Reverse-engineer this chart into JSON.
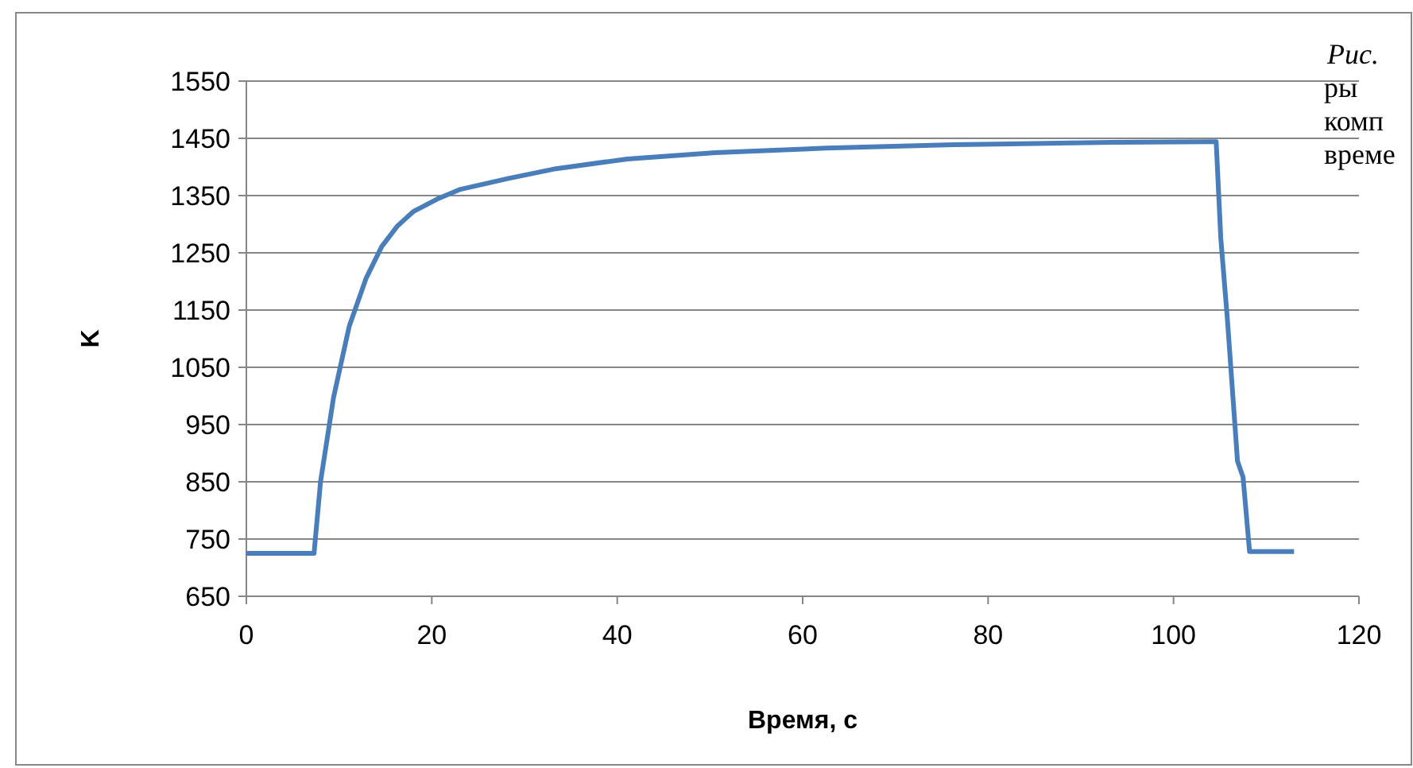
{
  "chart_data": {
    "type": "line",
    "xlabel": "Время, с",
    "ylabel": "K",
    "annotations": [
      "Рис.",
      "ры",
      "комп",
      "време"
    ],
    "x": [
      0,
      7.3,
      8,
      9.4,
      11.1,
      12.9,
      14.6,
      16.3,
      18,
      20.6,
      23.1,
      28.3,
      33.4,
      41.1,
      50.6,
      62.6,
      76.3,
      93.4,
      104.6,
      105.1,
      105.8,
      106.9,
      107.5,
      108.2,
      113
    ],
    "series": [
      {
        "color": "#4a7ebb",
        "values": [
          725,
          725,
          850,
          997,
          1122,
          1205,
          1261,
          1297,
          1322,
          1344,
          1361,
          1380,
          1397,
          1414,
          1425,
          1433,
          1439,
          1443,
          1444,
          1275,
          1136,
          886,
          858,
          728,
          728
        ]
      }
    ],
    "xlim": [
      0,
      120
    ],
    "xticks": [
      0,
      20,
      40,
      60,
      80,
      100,
      120
    ],
    "ylim": [
      650,
      1550
    ],
    "yticks": [
      650,
      750,
      850,
      950,
      1050,
      1150,
      1250,
      1350,
      1450,
      1550
    ],
    "grid": "y",
    "marker": "none",
    "line_style": "solid"
  }
}
